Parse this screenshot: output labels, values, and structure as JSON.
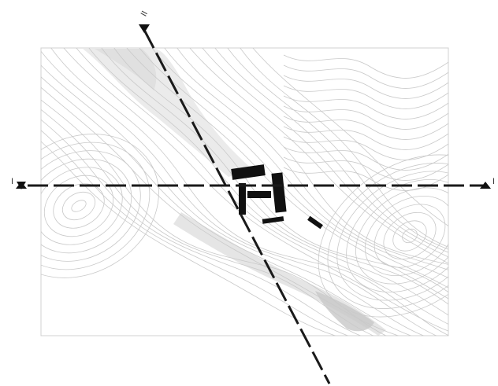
{
  "map": {
    "section_lines": [
      {
        "id": "A",
        "label": "I",
        "end_label": "I",
        "orientation": "horizontal"
      },
      {
        "id": "B",
        "label": "II",
        "orientation": "diagonal"
      }
    ],
    "buildings": [
      {
        "name": "main-block"
      },
      {
        "name": "courtyard-wing-left"
      },
      {
        "name": "courtyard-wing-right"
      },
      {
        "name": "courtyard-wing-middle"
      },
      {
        "name": "south-bar"
      },
      {
        "name": "outbuilding"
      }
    ],
    "terrain": {
      "contour_color": "#c9c9c9",
      "ridge_shading_color": "#d6d6d6",
      "building_color": "#111111",
      "section_line_color": "#1a1a1a"
    }
  }
}
